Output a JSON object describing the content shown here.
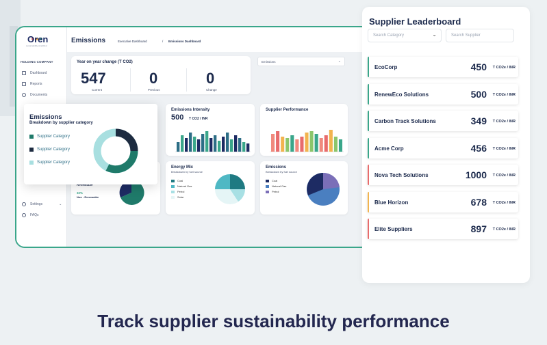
{
  "app": {
    "logo": "Oren",
    "logo_sub": "sustainability simplified"
  },
  "sidebar": {
    "company": "HOLDING COMPANY",
    "items": [
      {
        "label": "Dashboard",
        "icon": "dashboard-icon"
      },
      {
        "label": "Reports",
        "icon": "reports-icon"
      },
      {
        "label": "Documents",
        "icon": "documents-icon"
      }
    ],
    "settings": "Settings",
    "help": "FAQs"
  },
  "header": {
    "title": "Emissions",
    "crumbs": [
      "Executive Dashboard",
      "/",
      "Emissions Dashboard"
    ]
  },
  "yoy": {
    "title": "Year on year change (T CO2)",
    "metrics": [
      {
        "value": "547",
        "label": "Current"
      },
      {
        "value": "0",
        "label": "Previous"
      },
      {
        "value": "0",
        "label": "Change"
      }
    ]
  },
  "filter": {
    "value": "Emissions"
  },
  "intensity": {
    "title": "Emissions Intensity",
    "value": "500",
    "unit": "T CO2 / INR",
    "colors": [
      "#2d6e86",
      "#3aa68a",
      "#1d2b63"
    ]
  },
  "performance": {
    "title": "Supplier Performance",
    "colors": [
      "#f08a7e",
      "#e86c6c",
      "#f2b44f",
      "#8cc66b",
      "#3aa68a"
    ]
  },
  "energy": {
    "title": "Energy Mix",
    "sub": "Breakdown by fuel source",
    "legend": [
      "Coal",
      "Natural Gas",
      "Petrol",
      "Solar"
    ],
    "colors": [
      "#1f7a82",
      "#4fb8c4",
      "#a8e0e4",
      "#e5f5f6"
    ]
  },
  "emissions_fuel": {
    "title": "Emissions",
    "sub": "Breakdown by fuel source",
    "legend": [
      "Coal",
      "Natural Gas",
      "Petrol"
    ],
    "colors": [
      "#1d2b63",
      "#4a7fc0",
      "#7b6fb8"
    ]
  },
  "renewable": {
    "label": "Renewable",
    "pct": "32%",
    "non_label": "Non - Renewable"
  },
  "popup": {
    "title": "Emissions",
    "sub": "Breakdown by supplier category",
    "legend": [
      {
        "label": "Supplier Category",
        "color": "#1f7a6a"
      },
      {
        "label": "Supplier Category",
        "color": "#1d2b40"
      },
      {
        "label": "Supplier Category",
        "color": "#a8dfe0"
      }
    ]
  },
  "leaderboard": {
    "title": "Supplier Leaderboard",
    "category_placeholder": "Search Category",
    "supplier_placeholder": "Search Supplier",
    "unit": "T CO2e / INR",
    "rows": [
      {
        "name": "EcoCorp",
        "value": "450",
        "color": "#3aa68a"
      },
      {
        "name": "RenewEco Solutions",
        "value": "500",
        "color": "#3aa68a"
      },
      {
        "name": "Carbon Track Solutions",
        "value": "349",
        "color": "#3aa68a"
      },
      {
        "name": "Acme Corp",
        "value": "456",
        "color": "#3aa68a"
      },
      {
        "name": "Nova Tech Solutions",
        "value": "1000",
        "color": "#e86c6c"
      },
      {
        "name": "Blue Horizon",
        "value": "678",
        "color": "#f2b44f"
      },
      {
        "name": "Elite Suppliers",
        "value": "897",
        "color": "#e86c6c"
      }
    ]
  },
  "caption": "Track supplier sustainability performance"
}
